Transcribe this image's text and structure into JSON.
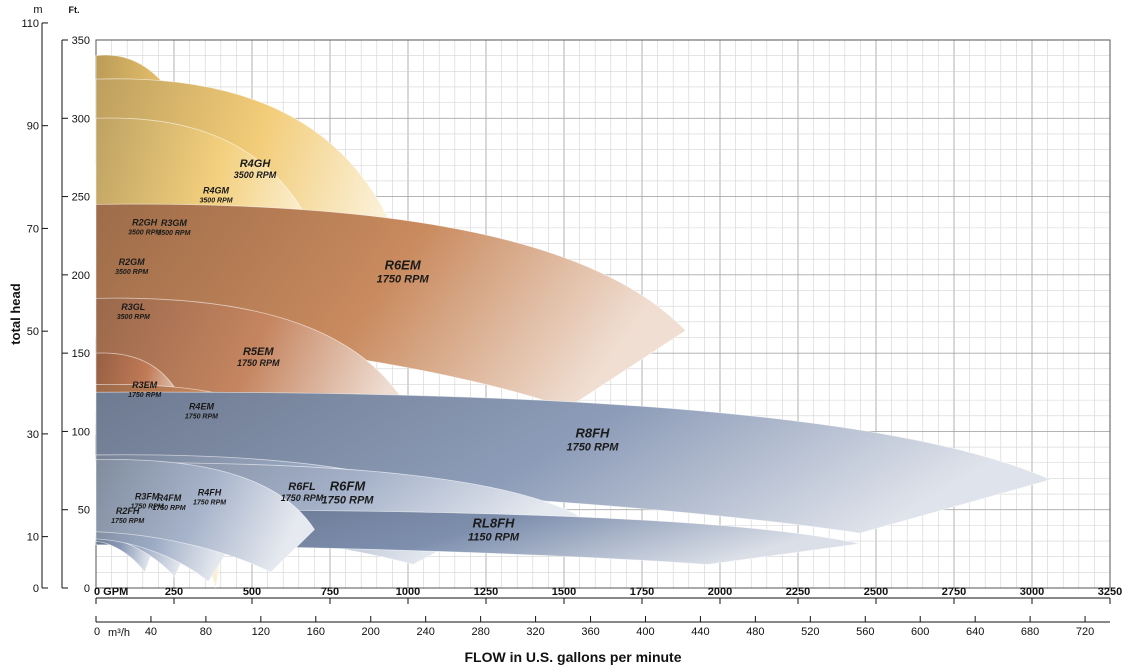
{
  "chart_data": {
    "type": "area",
    "title": "",
    "xlabel": "FLOW in U.S. gallons per minute",
    "ylabel": "total head",
    "x_unit_gpm": "GPM",
    "x_unit_m3h": "m³/h",
    "y_unit_ft": "Ft.",
    "y_unit_m": "m",
    "xlim_gpm": [
      0,
      3250
    ],
    "ylim_ft": [
      0,
      350
    ],
    "grid": true,
    "gpm_ticks": [
      0,
      250,
      500,
      750,
      1000,
      1250,
      1500,
      1750,
      2000,
      2250,
      2500,
      2750,
      3000,
      3250
    ],
    "gpm_tick_labels": [
      "0  GPM",
      "250",
      "500",
      "750",
      "1000",
      "1250",
      "1500",
      "1750",
      "2000",
      "2250",
      "2500",
      "2750",
      "3000",
      "3250"
    ],
    "m3h_ticks": [
      0,
      40,
      80,
      120,
      160,
      200,
      240,
      280,
      320,
      360,
      400,
      440,
      480,
      520,
      560,
      600,
      640,
      680,
      720
    ],
    "ft_ticks": [
      0,
      50,
      100,
      150,
      200,
      250,
      300,
      350
    ],
    "m_ticks": [
      0,
      10,
      30,
      50,
      70,
      90,
      110
    ],
    "series": [
      {
        "name": "R3GM",
        "speed": "3500 RPM",
        "color": "#f0c870",
        "head_ft": [
          0,
          340
        ],
        "flow_gpm": [
          0,
          480
        ]
      },
      {
        "name": "R4GH",
        "speed": "3500 RPM",
        "color": "#f2cc78",
        "head_ft": [
          150,
          325
        ],
        "flow_gpm": [
          0,
          980
        ]
      },
      {
        "name": "R2GH",
        "speed": "3500 RPM",
        "color": "#f0c46a",
        "head_ft": [
          150,
          270
        ],
        "flow_gpm": [
          0,
          300
        ]
      },
      {
        "name": "R4GM",
        "speed": "3500 RPM",
        "color": "#f3d07e",
        "head_ft": [
          150,
          300
        ],
        "flow_gpm": [
          0,
          740
        ]
      },
      {
        "name": "R2GM",
        "speed": "3500 RPM",
        "color": "#f1c66c",
        "head_ft": [
          145,
          235
        ],
        "flow_gpm": [
          0,
          220
        ]
      },
      {
        "name": "R3GL",
        "speed": "3500 RPM",
        "color": "#f2c870",
        "head_ft": [
          140,
          195
        ],
        "flow_gpm": [
          0,
          230
        ]
      },
      {
        "name": "R6EM",
        "speed": "1750 RPM",
        "color": "#c98a5e",
        "head_ft": [
          115,
          245
        ],
        "flow_gpm": [
          0,
          1890
        ]
      },
      {
        "name": "R5EM",
        "speed": "1750 RPM",
        "color": "#c58560",
        "head_ft": [
          72,
          185
        ],
        "flow_gpm": [
          0,
          1000
        ]
      },
      {
        "name": "R3EM",
        "speed": "1750 RPM",
        "color": "#c07a56",
        "head_ft": [
          80,
          150
        ],
        "flow_gpm": [
          0,
          300
        ]
      },
      {
        "name": "R4EM",
        "speed": "1750 RPM",
        "color": "#c8875c",
        "head_ft": [
          80,
          130
        ],
        "flow_gpm": [
          0,
          650
        ]
      },
      {
        "name": "R8FH",
        "speed": "1750 RPM",
        "color": "#8d9cb8",
        "head_ft": [
          35,
          125
        ],
        "flow_gpm": [
          0,
          3060
        ]
      },
      {
        "name": "R6FL",
        "speed": "1750 RPM",
        "color": "#9aa8c2",
        "head_ft": [
          15,
          85
        ],
        "flow_gpm": [
          0,
          1270
        ]
      },
      {
        "name": "R6FM",
        "speed": "1750 RPM",
        "color": "#a3b0c8",
        "head_ft": [
          25,
          80
        ],
        "flow_gpm": [
          0,
          1550
        ]
      },
      {
        "name": "RL8FH",
        "speed": "1150 RPM",
        "color": "#7e8fae",
        "head_ft": [
          15,
          50
        ],
        "flow_gpm": [
          0,
          2450
        ]
      },
      {
        "name": "R2FH",
        "speed": "1750 RPM",
        "color": "#8a99b6",
        "head_ft": [
          10,
          65
        ],
        "flow_gpm": [
          0,
          195
        ]
      },
      {
        "name": "R3FM",
        "speed": "1750 RPM",
        "color": "#94a3be",
        "head_ft": [
          7,
          80
        ],
        "flow_gpm": [
          0,
          315
        ]
      },
      {
        "name": "R4FM",
        "speed": "1750 RPM",
        "color": "#9cabc4",
        "head_ft": [
          4,
          80
        ],
        "flow_gpm": [
          0,
          450
        ]
      },
      {
        "name": "R4FH",
        "speed": "1750 RPM",
        "color": "#a6b3ca",
        "head_ft": [
          10,
          82
        ],
        "flow_gpm": [
          0,
          700
        ]
      }
    ]
  }
}
